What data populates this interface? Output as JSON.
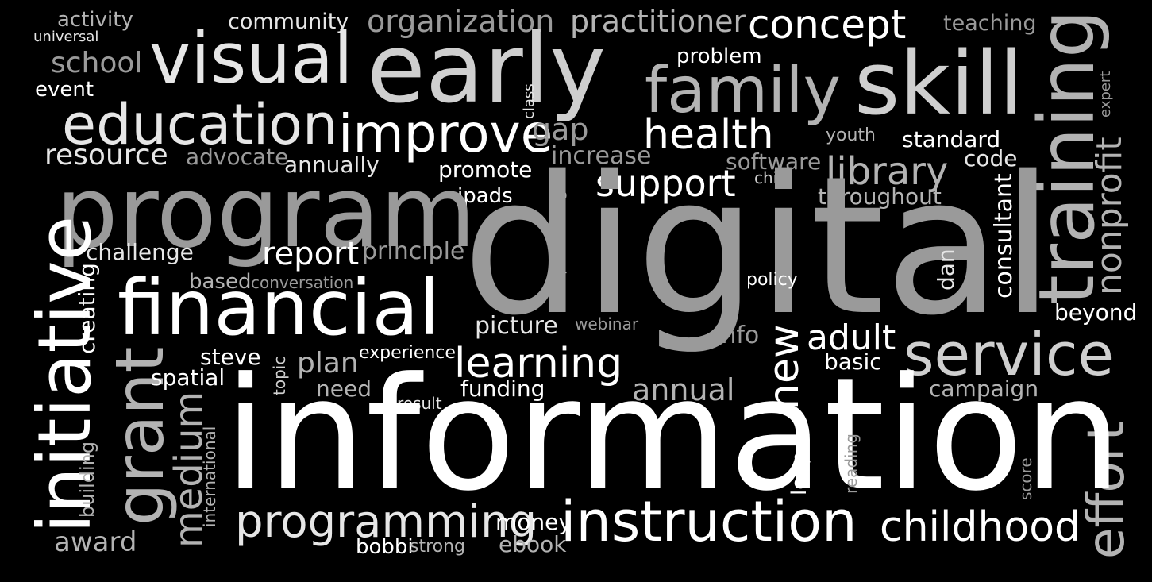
{
  "words": {
    "activity": "activity",
    "universal": "universal",
    "community": "community",
    "organization": "organization",
    "practitioner": "practitioner",
    "concept": "concept",
    "teaching": "teaching",
    "school": "school",
    "visual": "visual",
    "early": "early",
    "problem": "problem",
    "family": "family",
    "skill": "skill",
    "event": "event",
    "class": "class",
    "expert": "expert",
    "education": "education",
    "improve": "improve",
    "gap": "gap",
    "health": "health",
    "youth": "youth",
    "standard": "standard",
    "training": "training",
    "resource": "resource",
    "advocate": "advocate",
    "annually": "annually",
    "increase": "increase",
    "software": "software",
    "code": "code",
    "promote": "promote",
    "library": "library",
    "child": "child",
    "support": "support",
    "ipads": "ipads",
    "throughout": "throughout",
    "nonprofit": "nonprofit",
    "program": "program",
    "presenting": "presenting",
    "digital": "digital",
    "consultant": "consultant",
    "challenge": "challenge",
    "report": "report",
    "principle": "principle",
    "dan": "dan",
    "creating": "creating",
    "based": "based",
    "conversation": "conversation",
    "policy": "policy",
    "initiative": "initiative",
    "financial": "financial",
    "beyond": "beyond",
    "picture": "picture",
    "webinar": "webinar",
    "info": "info",
    "new": "new",
    "adult": "adult",
    "service": "service",
    "steve": "steve",
    "experience": "experience",
    "grant": "grant",
    "plan": "plan",
    "topic": "topic",
    "learning": "learning",
    "basic": "basic",
    "spatial": "spatial",
    "need": "need",
    "funding": "funding",
    "annual": "annual",
    "campaign": "campaign",
    "result": "result",
    "effort": "effort",
    "building": "building",
    "medium": "medium",
    "information": "information",
    "international": "international",
    "reading": "reading",
    "leap": "leap",
    "score": "score",
    "programming": "programming",
    "money": "money",
    "instruction": "instruction",
    "childhood": "childhood",
    "award": "award",
    "bobbi": "bobbi",
    "strong": "strong",
    "ebook": "ebook"
  },
  "colors": {
    "background": "#000000",
    "white": "#ffffff",
    "light": "#e6e6e6",
    "mid": "#cfcfcf",
    "gray": "#b3b3b3",
    "dark": "#9a9a9a"
  }
}
